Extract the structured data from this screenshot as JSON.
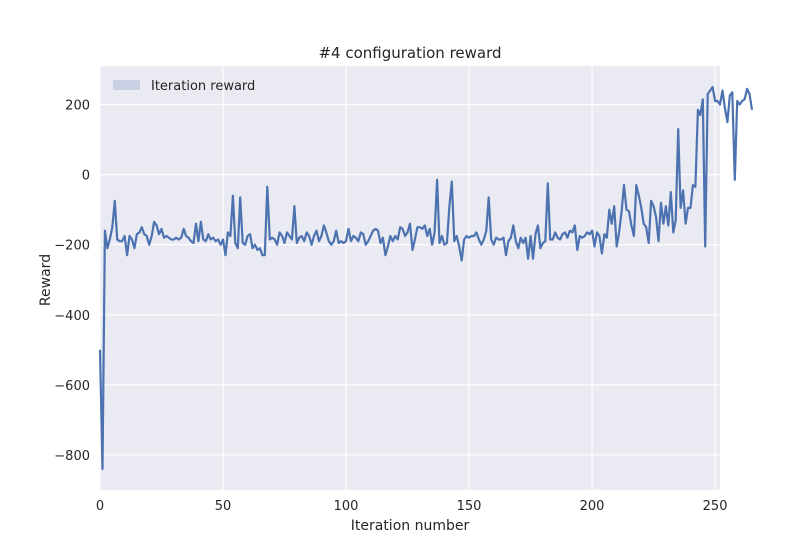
{
  "colors": {
    "background": "#ffffff",
    "plot_bg": "#eaeaf2",
    "grid": "#ffffff",
    "series_line": "#4c72b0",
    "legend_patch": "#c9d0e4",
    "text": "#262626"
  },
  "chart_data": {
    "type": "line",
    "title": "#4 configuration reward",
    "xlabel": "Iteration number",
    "ylabel": "Reward",
    "xlim": [
      0,
      252
    ],
    "ylim": [
      -900,
      310
    ],
    "xticks": [
      0,
      50,
      100,
      150,
      200,
      250
    ],
    "xtick_labels": [
      "0",
      "50",
      "100",
      "150",
      "200",
      "250"
    ],
    "yticks": [
      -800,
      -600,
      -400,
      -200,
      0,
      200
    ],
    "ytick_labels": [
      "−800",
      "−600",
      "−400",
      "−200",
      "0",
      "200"
    ],
    "grid": true,
    "legend": {
      "position": "top-left",
      "entries": [
        "Iteration reward"
      ]
    },
    "series": [
      {
        "name": "Iteration reward",
        "values": [
          -500,
          -840,
          -160,
          -210,
          -185,
          -150,
          -75,
          -185,
          -190,
          -190,
          -175,
          -230,
          -175,
          -185,
          -210,
          -170,
          -165,
          -150,
          -170,
          -175,
          -200,
          -175,
          -135,
          -145,
          -170,
          -155,
          -180,
          -175,
          -180,
          -185,
          -185,
          -180,
          -185,
          -180,
          -155,
          -175,
          -180,
          -190,
          -195,
          -140,
          -190,
          -135,
          -185,
          -190,
          -170,
          -185,
          -180,
          -190,
          -185,
          -200,
          -185,
          -230,
          -165,
          -175,
          -60,
          -195,
          -210,
          -65,
          -195,
          -200,
          -175,
          -170,
          -210,
          -200,
          -215,
          -210,
          -230,
          -230,
          -35,
          -185,
          -180,
          -185,
          -200,
          -165,
          -175,
          -195,
          -165,
          -175,
          -185,
          -90,
          -195,
          -180,
          -175,
          -190,
          -165,
          -175,
          -200,
          -175,
          -160,
          -190,
          -175,
          -145,
          -165,
          -190,
          -200,
          -190,
          -160,
          -195,
          -190,
          -195,
          -190,
          -155,
          -190,
          -175,
          -180,
          -190,
          -165,
          -170,
          -200,
          -190,
          -175,
          -160,
          -155,
          -160,
          -195,
          -180,
          -230,
          -205,
          -175,
          -190,
          -175,
          -185,
          -150,
          -155,
          -175,
          -165,
          -140,
          -215,
          -185,
          -150,
          -150,
          -155,
          -145,
          -175,
          -155,
          -200,
          -165,
          -15,
          -195,
          -175,
          -200,
          -195,
          -90,
          -20,
          -190,
          -175,
          -205,
          -245,
          -185,
          -175,
          -180,
          -175,
          -175,
          -165,
          -185,
          -200,
          -185,
          -160,
          -65,
          -185,
          -200,
          -180,
          -185,
          -185,
          -180,
          -230,
          -190,
          -180,
          -145,
          -190,
          -210,
          -180,
          -195,
          -180,
          -240,
          -175,
          -240,
          -170,
          -145,
          -210,
          -195,
          -190,
          -25,
          -185,
          -185,
          -165,
          -180,
          -185,
          -170,
          -165,
          -180,
          -160,
          -165,
          -145,
          -215,
          -175,
          -180,
          -175,
          -165,
          -170,
          -160,
          -205,
          -165,
          -175,
          -225,
          -170,
          -180,
          -100,
          -140,
          -90,
          -205,
          -165,
          -105,
          -30,
          -100,
          -105,
          -145,
          -175,
          -30,
          -60,
          -95,
          -140,
          -150,
          -195,
          -75,
          -90,
          -120,
          -190,
          -80,
          -140,
          -90,
          -145,
          -50,
          -165,
          -130,
          130,
          -95,
          -45,
          -140,
          -95,
          -95,
          -30,
          -35,
          185,
          170,
          215,
          -205,
          230,
          240,
          250,
          210,
          210,
          200,
          240,
          190,
          150,
          225,
          235,
          -15,
          210,
          200,
          210,
          215,
          245,
          230,
          185
        ]
      }
    ]
  }
}
